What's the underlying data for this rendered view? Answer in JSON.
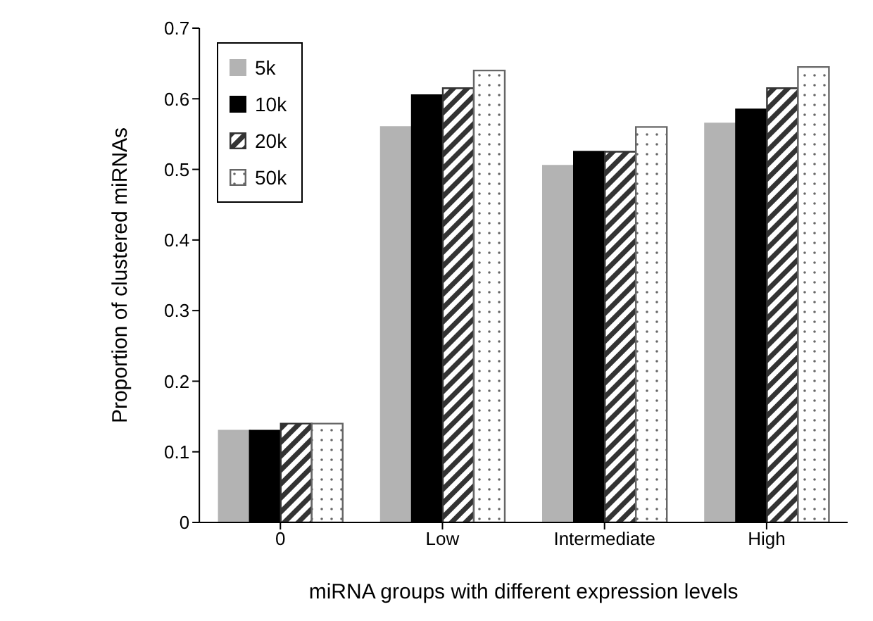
{
  "chart_data": {
    "type": "bar",
    "xlabel": "miRNA groups with different expression levels",
    "ylabel": "Proportion of clustered miRNAs",
    "categories": [
      "0",
      "Low",
      "Intermediate",
      "High"
    ],
    "series": [
      {
        "name": "5k",
        "color": "#b3b3b3",
        "values": [
          0.13,
          0.56,
          0.505,
          0.565
        ]
      },
      {
        "name": "10k",
        "color": "#000000",
        "values": [
          0.13,
          0.605,
          0.525,
          0.585
        ]
      },
      {
        "name": "20k",
        "color": "#333333",
        "values": [
          0.14,
          0.615,
          0.525,
          0.615
        ]
      },
      {
        "name": "50k",
        "color": "#666666",
        "values": [
          0.14,
          0.64,
          0.56,
          0.645
        ]
      }
    ],
    "ylim": [
      0,
      0.7
    ],
    "yticks": [
      0,
      0.1,
      0.2,
      0.3,
      0.4,
      0.5,
      0.6,
      0.7
    ],
    "grid": false,
    "legend": "top left"
  }
}
